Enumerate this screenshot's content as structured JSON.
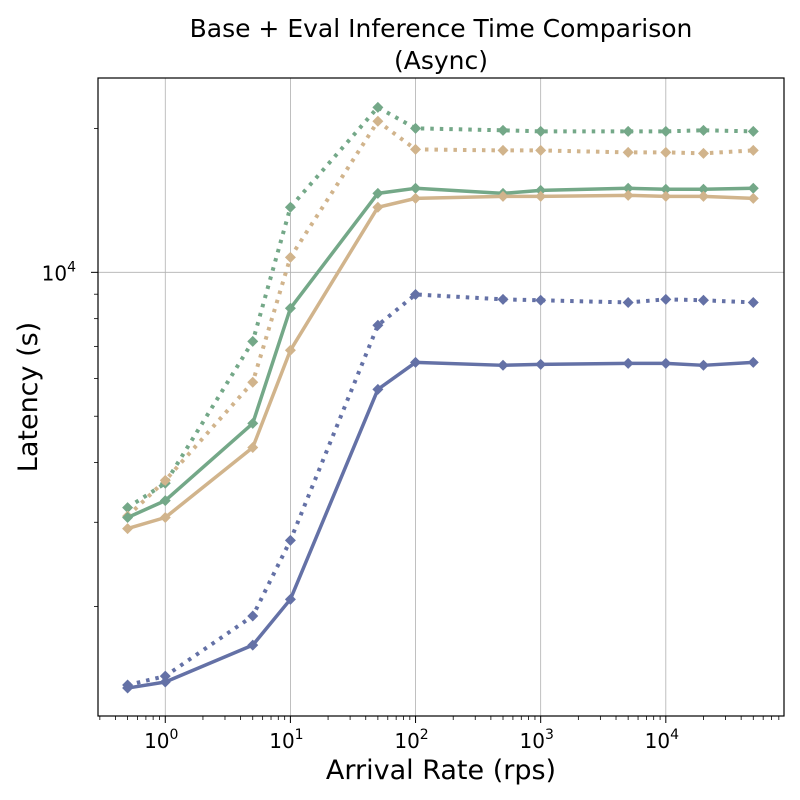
{
  "chart_data": {
    "type": "line",
    "title": "Base + Eval Inference Time Comparison",
    "subtitle": "(Async)",
    "xlabel": "Arrival Rate (rps)",
    "ylabel": "Latency (s)",
    "xscale": "log",
    "yscale": "log",
    "xlim": [
      0.29,
      88000
    ],
    "ylim": [
      1180,
      25500
    ],
    "grid": "major",
    "legend": "none",
    "x_ticks": [
      {
        "value": 1,
        "base": "10",
        "exp": "0"
      },
      {
        "value": 10,
        "base": "10",
        "exp": "1"
      },
      {
        "value": 100,
        "base": "10",
        "exp": "2"
      },
      {
        "value": 1000,
        "base": "10",
        "exp": "3"
      },
      {
        "value": 10000,
        "base": "10",
        "exp": "4"
      }
    ],
    "y_ticks": [
      {
        "value": 10000,
        "base": "10",
        "exp": "4"
      }
    ],
    "x": [
      0.5,
      1,
      5,
      10,
      50,
      100,
      500,
      1000,
      5000,
      10000,
      20000,
      50000
    ],
    "series": [
      {
        "color": "#74a888",
        "style": "dotted",
        "marker": "diamond",
        "values": [
          3220,
          3620,
          7170,
          13680,
          22140,
          20010,
          19820,
          19720,
          19720,
          19720,
          19820,
          19720
        ]
      },
      {
        "color": "#d1b48c",
        "style": "dotted",
        "marker": "diamond",
        "values": [
          3090,
          3670,
          5890,
          10750,
          20700,
          18080,
          17990,
          17990,
          17820,
          17820,
          17740,
          17990
        ]
      },
      {
        "color": "#74a888",
        "style": "solid",
        "marker": "diamond",
        "values": [
          3070,
          3330,
          4830,
          8410,
          14630,
          14990,
          14630,
          14840,
          14990,
          14920,
          14920,
          14990
        ]
      },
      {
        "color": "#d1b48c",
        "style": "solid",
        "marker": "diamond",
        "values": [
          2910,
          3070,
          4300,
          6870,
          13680,
          14280,
          14420,
          14420,
          14490,
          14420,
          14420,
          14280
        ]
      },
      {
        "color": "#6471a6",
        "style": "dotted",
        "marker": "diamond",
        "values": [
          1370,
          1430,
          1910,
          2750,
          7750,
          8990,
          8780,
          8740,
          8650,
          8780,
          8740,
          8650
        ]
      },
      {
        "color": "#6471a6",
        "style": "solid",
        "marker": "diamond",
        "values": [
          1350,
          1390,
          1660,
          2070,
          5690,
          6480,
          6390,
          6420,
          6450,
          6450,
          6390,
          6480
        ]
      }
    ]
  }
}
